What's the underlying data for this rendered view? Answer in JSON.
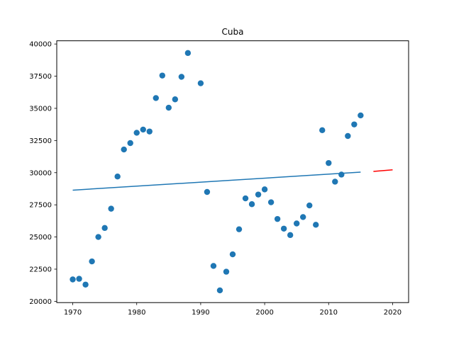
{
  "chart_data": {
    "type": "scatter",
    "title": "Cuba",
    "xlabel": "",
    "ylabel": "",
    "xlim": [
      1967.5,
      2022.5
    ],
    "ylim": [
      19900,
      40250
    ],
    "xticks": [
      1970,
      1980,
      1990,
      2000,
      2010,
      2020
    ],
    "yticks": [
      20000,
      22500,
      25000,
      27500,
      30000,
      32500,
      35000,
      37500,
      40000
    ],
    "grid": false,
    "colors": {
      "points": "#1f77b4",
      "trend": "#1f77b4",
      "forecast": "#ff0000"
    },
    "series": [
      {
        "kind": "points",
        "x": [
          1970,
          1971,
          1972,
          1973,
          1974,
          1975,
          1976,
          1977,
          1978,
          1979,
          1980,
          1981,
          1982,
          1983,
          1984,
          1985,
          1986,
          1987,
          1988,
          1990,
          1991,
          1992,
          1993,
          1994,
          1995,
          1996,
          1997,
          1998,
          1999,
          2000,
          2001,
          2002,
          2003,
          2004,
          2005,
          2006,
          2007,
          2008,
          2009,
          2010,
          2011,
          2012,
          2013,
          2014,
          2015
        ],
        "y": [
          21700,
          21750,
          21300,
          23100,
          25000,
          25700,
          27200,
          29700,
          31800,
          32300,
          33100,
          33350,
          33200,
          35800,
          37550,
          35050,
          35700,
          37450,
          39300,
          36950,
          28500,
          22750,
          20850,
          22300,
          23650,
          25600,
          28000,
          27550,
          28300,
          28700,
          27700,
          26400,
          25650,
          25150,
          26050,
          26550,
          27450,
          25950,
          33300,
          30750,
          29300,
          29850,
          32850,
          33750,
          34450
        ]
      },
      {
        "kind": "trend",
        "x": [
          1970,
          2015
        ],
        "y": [
          28640,
          30040
        ]
      },
      {
        "kind": "forecast",
        "x": [
          2017,
          2020
        ],
        "y": [
          30100,
          30220
        ]
      }
    ]
  }
}
